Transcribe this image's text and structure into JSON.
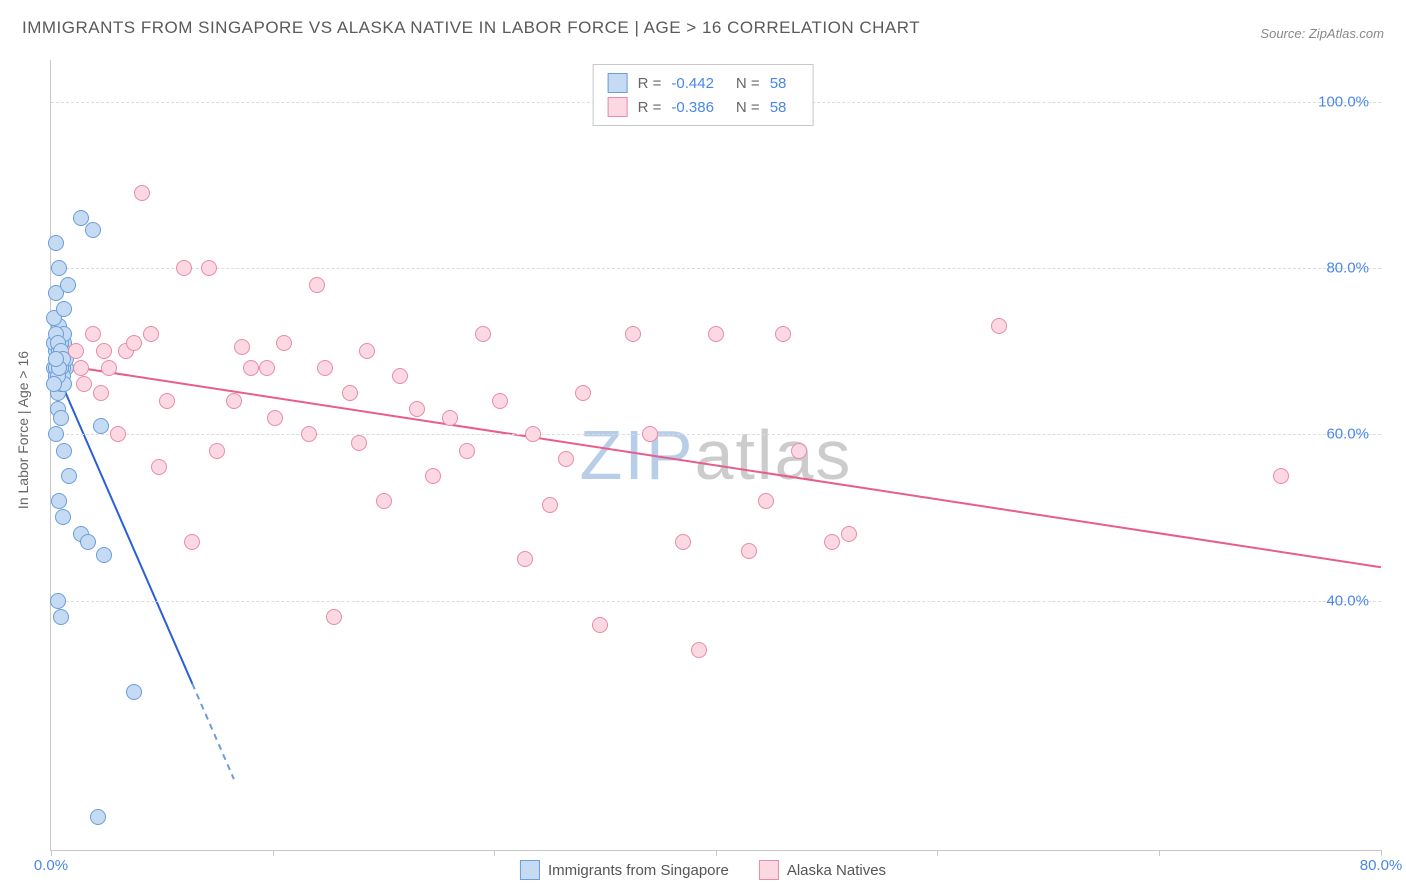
{
  "title": "IMMIGRANTS FROM SINGAPORE VS ALASKA NATIVE IN LABOR FORCE | AGE > 16 CORRELATION CHART",
  "source_label": "Source:",
  "source_value": "ZipAtlas.com",
  "y_axis_label": "In Labor Force | Age > 16",
  "watermark": {
    "text_a": "ZIP",
    "text_b": "atlas",
    "color_a": "#b8cde8",
    "color_b": "#cccccc"
  },
  "chart": {
    "type": "scatter",
    "background_color": "#ffffff",
    "grid_color": "#dcdcdc",
    "axis_color": "#c8c8c8",
    "tick_label_color": "#4a87e8",
    "xlim": [
      0,
      80
    ],
    "ylim": [
      10,
      105
    ],
    "y_ticks": [
      40,
      60,
      80,
      100
    ],
    "y_tick_labels": [
      "40.0%",
      "60.0%",
      "80.0%",
      "100.0%"
    ],
    "x_ticks": [
      0,
      20,
      40,
      60,
      80
    ],
    "x_tick_labels": [
      "0.0%",
      "",
      "",
      "",
      "80.0%"
    ],
    "x_minor_tick_step": 13.33,
    "label_fontsize": 15,
    "marker_radius": 8,
    "marker_border_width": 1.5,
    "trendline_width": 2
  },
  "series": [
    {
      "name": "Immigrants from Singapore",
      "fill": "#c5daf3",
      "stroke": "#6a9ed8",
      "line_color": "#2a5fd8",
      "r_value": "-0.442",
      "n_value": "58",
      "trend": {
        "x1": 0,
        "y1": 69,
        "x2": 8.5,
        "y2": 30,
        "dashed_extend_to_x": 11
      },
      "points": [
        [
          0.2,
          68
        ],
        [
          0.5,
          70
        ],
        [
          0.3,
          66
        ],
        [
          0.8,
          71
        ],
        [
          0.4,
          72
        ],
        [
          0.6,
          69
        ],
        [
          0.3,
          67
        ],
        [
          0.9,
          68
        ],
        [
          0.5,
          73
        ],
        [
          0.4,
          65
        ],
        [
          0.7,
          70
        ],
        [
          0.2,
          74
        ],
        [
          0.6,
          71
        ],
        [
          0.3,
          77
        ],
        [
          0.5,
          80
        ],
        [
          1.0,
          78
        ],
        [
          0.8,
          75
        ],
        [
          1.8,
          86
        ],
        [
          2.5,
          84.5
        ],
        [
          0.4,
          63
        ],
        [
          0.3,
          60
        ],
        [
          0.6,
          62
        ],
        [
          0.8,
          58
        ],
        [
          1.1,
          55
        ],
        [
          3.0,
          61
        ],
        [
          0.5,
          52
        ],
        [
          0.7,
          50
        ],
        [
          1.8,
          48
        ],
        [
          2.2,
          47
        ],
        [
          3.2,
          45.5
        ],
        [
          0.4,
          40
        ],
        [
          0.6,
          38
        ],
        [
          5.0,
          29
        ],
        [
          2.8,
          14
        ],
        [
          0.3,
          83
        ],
        [
          0.7,
          68
        ],
        [
          0.4,
          69
        ],
        [
          0.5,
          67
        ],
        [
          0.3,
          70
        ],
        [
          0.6,
          66
        ],
        [
          0.8,
          72
        ],
        [
          0.2,
          71
        ],
        [
          0.9,
          69
        ],
        [
          0.4,
          68
        ],
        [
          0.5,
          70
        ],
        [
          0.3,
          72
        ],
        [
          0.7,
          67
        ],
        [
          0.6,
          68
        ],
        [
          0.4,
          71
        ],
        [
          0.8,
          66
        ],
        [
          0.5,
          69
        ],
        [
          0.3,
          68
        ],
        [
          0.6,
          70
        ],
        [
          0.4,
          67
        ],
        [
          0.7,
          69
        ],
        [
          0.2,
          66
        ],
        [
          0.5,
          68
        ],
        [
          0.3,
          69
        ]
      ]
    },
    {
      "name": "Alaska Natives",
      "fill": "#fbd8e2",
      "stroke": "#e88ba8",
      "line_color": "#e85d8a",
      "r_value": "-0.386",
      "n_value": "58",
      "trend": {
        "x1": 0,
        "y1": 68.5,
        "x2": 80,
        "y2": 44
      },
      "points": [
        [
          5.5,
          89
        ],
        [
          13.0,
          68
        ],
        [
          4.5,
          70
        ],
        [
          8.0,
          80
        ],
        [
          5.0,
          71
        ],
        [
          3.5,
          68
        ],
        [
          1.5,
          70
        ],
        [
          2.0,
          66
        ],
        [
          6.0,
          72
        ],
        [
          9.5,
          80
        ],
        [
          11.5,
          70.5
        ],
        [
          3.0,
          65
        ],
        [
          7.0,
          64
        ],
        [
          12.0,
          68
        ],
        [
          16.5,
          68
        ],
        [
          10.0,
          58
        ],
        [
          16.0,
          78
        ],
        [
          18.0,
          65
        ],
        [
          14.0,
          71
        ],
        [
          15.5,
          60
        ],
        [
          21.0,
          67
        ],
        [
          18.5,
          59
        ],
        [
          20.0,
          52
        ],
        [
          22.0,
          63
        ],
        [
          24.0,
          62
        ],
        [
          26.0,
          72
        ],
        [
          25.0,
          58
        ],
        [
          27.0,
          64
        ],
        [
          30.0,
          51.5
        ],
        [
          31.0,
          57
        ],
        [
          28.5,
          45
        ],
        [
          33.0,
          37
        ],
        [
          35.0,
          72
        ],
        [
          38.0,
          47
        ],
        [
          40.0,
          72
        ],
        [
          42.0,
          46
        ],
        [
          43.0,
          52
        ],
        [
          39.0,
          34
        ],
        [
          44.0,
          72
        ],
        [
          47.0,
          47
        ],
        [
          48.0,
          48
        ],
        [
          57.0,
          73
        ],
        [
          74.0,
          55
        ],
        [
          17.0,
          38
        ],
        [
          8.5,
          47
        ],
        [
          4.0,
          60
        ],
        [
          6.5,
          56
        ],
        [
          2.5,
          72
        ],
        [
          1.8,
          68
        ],
        [
          3.2,
          70
        ],
        [
          11.0,
          64
        ],
        [
          13.5,
          62
        ],
        [
          19.0,
          70
        ],
        [
          23.0,
          55
        ],
        [
          29.0,
          60
        ],
        [
          32.0,
          65
        ],
        [
          36.0,
          60
        ],
        [
          45.0,
          58
        ]
      ]
    }
  ],
  "legend_top": {
    "r_label": "R =",
    "n_label": "N ="
  },
  "legend_bottom_labels": [
    "Immigrants from Singapore",
    "Alaska Natives"
  ]
}
